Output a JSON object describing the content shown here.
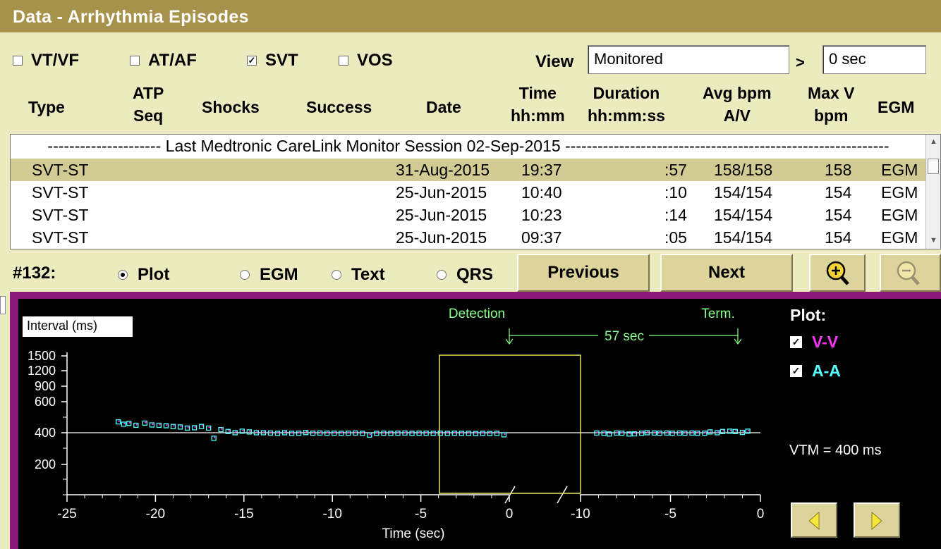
{
  "window": {
    "title": "Data - Arrhythmia Episodes"
  },
  "filters": {
    "items": [
      {
        "label": "VT/VF",
        "checked": false
      },
      {
        "label": "AT/AF",
        "checked": false
      },
      {
        "label": "SVT",
        "checked": true
      },
      {
        "label": "VOS",
        "checked": false
      }
    ],
    "view_label": "View",
    "view_value": "Monitored",
    "gt": ">",
    "duration_value": "0 sec"
  },
  "columns": {
    "type": "Type",
    "atp_1": "ATP",
    "atp_2": "Seq",
    "shocks": "Shocks",
    "success": "Success",
    "date": "Date",
    "time_1": "Time",
    "time_2": "hh:mm",
    "duration_1": "Duration",
    "duration_2": "hh:mm:ss",
    "avg_1": "Avg bpm",
    "avg_2": "A/V",
    "max_1": "Max V",
    "max_2": "bpm",
    "egm": "EGM"
  },
  "table": {
    "session_line": "--------------------- Last Medtronic CareLink Monitor Session 02-Sep-2015 ------------------------------------------------------------",
    "rows": [
      {
        "type": "SVT-ST",
        "date": "31-Aug-2015",
        "time": "19:37",
        "duration": ":57",
        "avg": "158/158",
        "max": "158",
        "egm": "EGM",
        "selected": true
      },
      {
        "type": "SVT-ST",
        "date": "25-Jun-2015",
        "time": "10:40",
        "duration": ":10",
        "avg": "154/154",
        "max": "154",
        "egm": "EGM",
        "selected": false
      },
      {
        "type": "SVT-ST",
        "date": "25-Jun-2015",
        "time": "10:23",
        "duration": ":14",
        "avg": "154/154",
        "max": "154",
        "egm": "EGM",
        "selected": false
      },
      {
        "type": "SVT-ST",
        "date": "25-Jun-2015",
        "time": "09:37",
        "duration": ":05",
        "avg": "154/154",
        "max": "154",
        "egm": "EGM",
        "selected": false
      }
    ]
  },
  "controls": {
    "episode": "#132:",
    "radios": [
      {
        "label": "Plot",
        "selected": true
      },
      {
        "label": "EGM",
        "selected": false
      },
      {
        "label": "Text",
        "selected": false
      },
      {
        "label": "QRS",
        "selected": false
      }
    ],
    "previous": "Previous",
    "next": "Next",
    "zoom_in_icon": "magnifier-plus-icon",
    "zoom_out_icon": "magnifier-minus-icon"
  },
  "plot": {
    "ylabel": "Interval (ms)",
    "xlabel": "Time (sec)",
    "detection": "Detection",
    "term": "Term.",
    "span": "57 sec",
    "legend_title": "Plot:",
    "legend": [
      {
        "label": "V-V",
        "checked": true,
        "color": "#ff33ff"
      },
      {
        "label": "A-A",
        "checked": true,
        "color": "#55ffff"
      }
    ],
    "vtm": "VTM = 400 ms",
    "colors": {
      "axis": "#ffffff",
      "window": "#e8e860",
      "annotation": "#88ff88",
      "vv": "#ff33ff",
      "aa": "#55ffff"
    }
  },
  "chart_data": {
    "type": "scatter",
    "ylabel": "Interval (ms)",
    "xlabel": "Time (sec)",
    "yticks": [
      "1500",
      "1200",
      "900",
      "600",
      "400",
      "200"
    ],
    "xticks_left": [
      "-25",
      "-20",
      "-15",
      "-10",
      "-5",
      "0"
    ],
    "xticks_right": [
      "-10",
      "-5",
      "0"
    ],
    "reference_line_ms": 400,
    "segments": [
      {
        "name": "onset",
        "x_range": [
          -25,
          0
        ],
        "points": [
          {
            "t": -22.1,
            "ms": 470
          },
          {
            "t": -21.8,
            "ms": 455
          },
          {
            "t": -21.5,
            "ms": 460
          },
          {
            "t": -21.1,
            "ms": 448
          },
          {
            "t": -20.6,
            "ms": 462
          },
          {
            "t": -20.2,
            "ms": 450
          },
          {
            "t": -19.8,
            "ms": 448
          },
          {
            "t": -19.4,
            "ms": 445
          },
          {
            "t": -19.0,
            "ms": 440
          },
          {
            "t": -18.6,
            "ms": 437
          },
          {
            "t": -18.2,
            "ms": 430
          },
          {
            "t": -17.8,
            "ms": 432
          },
          {
            "t": -17.4,
            "ms": 440
          },
          {
            "t": -17.0,
            "ms": 430
          },
          {
            "t": -16.7,
            "ms": 365
          },
          {
            "t": -16.3,
            "ms": 420
          },
          {
            "t": -15.9,
            "ms": 408
          },
          {
            "t": -15.5,
            "ms": 400
          },
          {
            "t": -15.1,
            "ms": 410
          },
          {
            "t": -14.7,
            "ms": 405
          },
          {
            "t": -14.3,
            "ms": 400
          },
          {
            "t": -13.9,
            "ms": 400
          },
          {
            "t": -13.5,
            "ms": 398
          },
          {
            "t": -13.1,
            "ms": 396
          },
          {
            "t": -12.7,
            "ms": 400
          },
          {
            "t": -12.3,
            "ms": 396
          },
          {
            "t": -11.9,
            "ms": 397
          },
          {
            "t": -11.5,
            "ms": 401
          },
          {
            "t": -11.1,
            "ms": 397
          },
          {
            "t": -10.7,
            "ms": 398
          },
          {
            "t": -10.3,
            "ms": 397
          },
          {
            "t": -9.9,
            "ms": 397
          },
          {
            "t": -9.5,
            "ms": 396
          },
          {
            "t": -9.1,
            "ms": 397
          },
          {
            "t": -8.7,
            "ms": 398
          },
          {
            "t": -8.3,
            "ms": 396
          },
          {
            "t": -7.9,
            "ms": 385
          },
          {
            "t": -7.5,
            "ms": 396
          },
          {
            "t": -7.1,
            "ms": 397
          },
          {
            "t": -6.7,
            "ms": 396
          },
          {
            "t": -6.3,
            "ms": 397
          },
          {
            "t": -5.9,
            "ms": 398
          },
          {
            "t": -5.5,
            "ms": 396
          },
          {
            "t": -5.1,
            "ms": 397
          },
          {
            "t": -4.7,
            "ms": 397
          },
          {
            "t": -4.3,
            "ms": 396
          },
          {
            "t": -3.9,
            "ms": 397
          },
          {
            "t": -3.5,
            "ms": 396
          },
          {
            "t": -3.1,
            "ms": 397
          },
          {
            "t": -2.7,
            "ms": 396
          },
          {
            "t": -2.3,
            "ms": 396
          },
          {
            "t": -1.9,
            "ms": 395
          },
          {
            "t": -1.5,
            "ms": 396
          },
          {
            "t": -1.1,
            "ms": 395
          },
          {
            "t": -0.7,
            "ms": 396
          },
          {
            "t": -0.3,
            "ms": 387
          }
        ]
      },
      {
        "name": "termination",
        "x_range": [
          -10,
          0
        ],
        "points": [
          {
            "t": -9.1,
            "ms": 398
          },
          {
            "t": -8.7,
            "ms": 397
          },
          {
            "t": -8.4,
            "ms": 392
          },
          {
            "t": -8.0,
            "ms": 398
          },
          {
            "t": -7.7,
            "ms": 397
          },
          {
            "t": -7.3,
            "ms": 392
          },
          {
            "t": -7.0,
            "ms": 393
          },
          {
            "t": -6.6,
            "ms": 397
          },
          {
            "t": -6.3,
            "ms": 400
          },
          {
            "t": -5.9,
            "ms": 398
          },
          {
            "t": -5.6,
            "ms": 397
          },
          {
            "t": -5.2,
            "ms": 398
          },
          {
            "t": -4.9,
            "ms": 397
          },
          {
            "t": -4.5,
            "ms": 398
          },
          {
            "t": -4.2,
            "ms": 397
          },
          {
            "t": -3.8,
            "ms": 398
          },
          {
            "t": -3.5,
            "ms": 397
          },
          {
            "t": -3.1,
            "ms": 397
          },
          {
            "t": -2.8,
            "ms": 405
          },
          {
            "t": -2.4,
            "ms": 400
          },
          {
            "t": -2.1,
            "ms": 408
          },
          {
            "t": -1.7,
            "ms": 410
          },
          {
            "t": -1.4,
            "ms": 408
          },
          {
            "t": -1.0,
            "ms": 402
          },
          {
            "t": -0.7,
            "ms": 410
          }
        ]
      }
    ]
  }
}
